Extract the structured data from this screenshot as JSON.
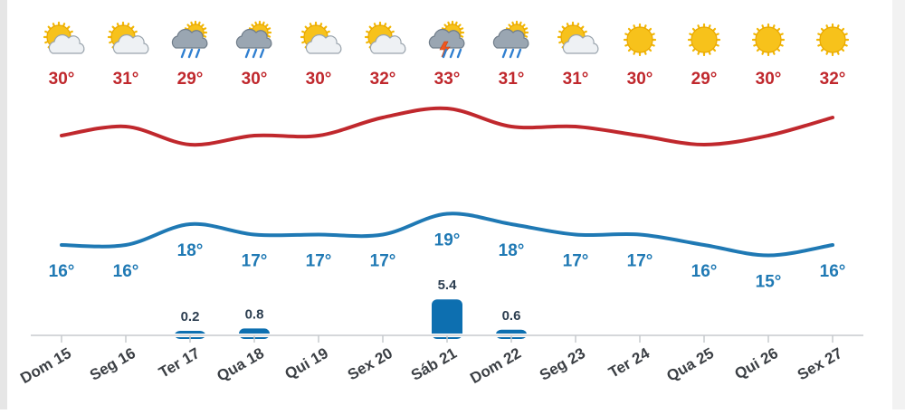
{
  "chart_data": {
    "type": "line",
    "categories": [
      "Dom 15",
      "Seg 16",
      "Ter 17",
      "Qua 18",
      "Qui 19",
      "Sex 20",
      "Sáb 21",
      "Dom 22",
      "Seg 23",
      "Ter 24",
      "Qua 25",
      "Qui 26",
      "Sex 27"
    ],
    "icons": [
      "partly-cloudy-icon",
      "partly-cloudy-icon",
      "rain-cloud-icon",
      "rain-cloud-icon",
      "partly-cloudy-icon",
      "partly-cloudy-icon",
      "thunderstorm-icon",
      "rain-cloud-icon",
      "partly-cloudy-icon",
      "sun-icon",
      "sun-icon",
      "sun-icon",
      "sun-icon"
    ],
    "series": [
      {
        "values": [
          30,
          31,
          29,
          30,
          30,
          32,
          33,
          31,
          31,
          30,
          29,
          30,
          32
        ],
        "labels": [
          "30°",
          "31°",
          "29°",
          "30°",
          "30°",
          "32°",
          "33°",
          "31°",
          "31°",
          "30°",
          "29°",
          "30°",
          "32°"
        ],
        "color": "#c0282d"
      },
      {
        "values": [
          16,
          16,
          18,
          17,
          17,
          17,
          19,
          18,
          17,
          17,
          16,
          15,
          16
        ],
        "labels": [
          "16°",
          "16°",
          "18°",
          "17°",
          "17°",
          "17°",
          "19°",
          "18°",
          "17°",
          "17°",
          "16°",
          "15°",
          "16°"
        ],
        "color": "#1f79b4"
      }
    ],
    "precipitation": {
      "values": [
        0,
        0,
        0.2,
        0.8,
        0,
        0,
        5.4,
        0.6,
        0,
        0,
        0,
        0,
        0
      ],
      "labels": [
        "",
        "",
        "0.2",
        "0.8",
        "",
        "",
        "5.4",
        "0.6",
        "",
        "",
        "",
        "",
        ""
      ],
      "color": "#0d6fb0"
    }
  }
}
